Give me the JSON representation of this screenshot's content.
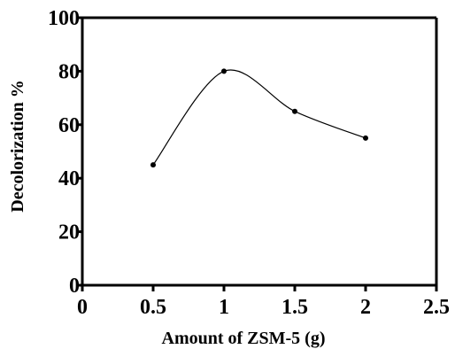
{
  "chart_data": {
    "type": "line",
    "title": "",
    "xlabel": "Amount of ZSM-5  (g)",
    "ylabel": "Decolorization %",
    "x": [
      0.5,
      1,
      1.5,
      2
    ],
    "series": [
      {
        "values": [
          45,
          80,
          65,
          55
        ]
      }
    ],
    "xlim": [
      0,
      2.5
    ],
    "ylim": [
      0,
      100
    ],
    "xticks": [
      "0",
      "0.5",
      "1",
      "1.5",
      "2",
      "2.5"
    ],
    "yticks": [
      "0",
      "20",
      "40",
      "60",
      "80",
      "100"
    ],
    "smooth": true,
    "markers": true,
    "grid": false,
    "line_color": "#000000"
  }
}
